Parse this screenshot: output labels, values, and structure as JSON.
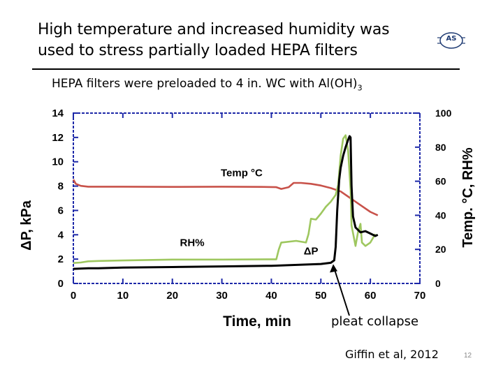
{
  "slide": {
    "title": "High temperature and increased humidity was used to stress partially loaded HEPA filters",
    "subtitle_main": "HEPA filters were preloaded to 4 in. WC with Al(OH)",
    "subtitle_sub": "3",
    "logo_text": "AS",
    "annotation": "pleat collapse",
    "citation": "Giffin et al, 2012",
    "page_number": "12"
  },
  "chart_data": {
    "type": "line",
    "xlabel": "Time, min",
    "ylabel_left": "ΔP, kPa",
    "ylabel_right": "Temp. °C, RH%",
    "xlim": [
      0,
      70
    ],
    "ylim_left": [
      0,
      14
    ],
    "ylim_right": [
      0,
      100
    ],
    "x_ticks": [
      "0",
      "10",
      "20",
      "30",
      "40",
      "50",
      "60",
      "70"
    ],
    "y_left_ticks": [
      "0",
      "2",
      "4",
      "6",
      "8",
      "10",
      "12",
      "14"
    ],
    "y_right_ticks": [
      "0",
      "20",
      "40",
      "60",
      "80",
      "100"
    ],
    "grid": false,
    "series": [
      {
        "name": "Temp °C",
        "axis": "right",
        "color": "#c8524a",
        "points": [
          [
            0,
            61
          ],
          [
            0.5,
            58.5
          ],
          [
            1.5,
            57.3
          ],
          [
            3,
            56.8
          ],
          [
            10,
            56.8
          ],
          [
            20,
            56.7
          ],
          [
            30,
            56.8
          ],
          [
            38,
            56.7
          ],
          [
            41,
            56.5
          ],
          [
            42,
            55.5
          ],
          [
            43.5,
            56.5
          ],
          [
            44.5,
            59
          ],
          [
            46,
            59
          ],
          [
            48,
            58.5
          ],
          [
            50,
            57.5
          ],
          [
            52,
            56
          ],
          [
            54,
            54
          ],
          [
            56,
            50
          ],
          [
            58,
            46
          ],
          [
            60,
            42
          ],
          [
            61.5,
            40
          ]
        ]
      },
      {
        "name": "RH%",
        "axis": "right",
        "color": "#9ec75f",
        "points": [
          [
            0,
            12
          ],
          [
            1.5,
            12.3
          ],
          [
            3,
            13
          ],
          [
            5,
            13.2
          ],
          [
            10,
            13.5
          ],
          [
            20,
            14
          ],
          [
            30,
            14
          ],
          [
            40,
            14.2
          ],
          [
            41,
            14.2
          ],
          [
            41.5,
            20
          ],
          [
            42,
            24
          ],
          [
            45,
            25
          ],
          [
            47,
            24
          ],
          [
            47.5,
            29
          ],
          [
            48,
            38
          ],
          [
            49,
            37.5
          ],
          [
            50,
            41
          ],
          [
            51,
            45
          ],
          [
            52,
            48
          ],
          [
            53,
            52
          ],
          [
            53.5,
            58
          ],
          [
            54,
            75
          ],
          [
            54.5,
            85
          ],
          [
            55,
            87
          ],
          [
            55.5,
            78
          ],
          [
            56,
            55
          ],
          [
            56.2,
            34
          ],
          [
            57,
            22
          ],
          [
            57.5,
            30
          ],
          [
            58,
            35
          ],
          [
            58.3,
            24
          ],
          [
            59,
            22
          ],
          [
            60,
            24
          ],
          [
            61,
            29
          ]
        ]
      },
      {
        "name": "ΔP",
        "axis": "left",
        "color": "#000000",
        "points": [
          [
            0,
            1.2
          ],
          [
            3,
            1.25
          ],
          [
            5,
            1.25
          ],
          [
            10,
            1.3
          ],
          [
            20,
            1.35
          ],
          [
            30,
            1.4
          ],
          [
            40,
            1.45
          ],
          [
            50,
            1.6
          ],
          [
            52,
            1.7
          ],
          [
            52.7,
            1.9
          ],
          [
            53,
            3.0
          ],
          [
            53.3,
            6.0
          ],
          [
            53.7,
            8.5
          ],
          [
            54,
            9.5
          ],
          [
            54.5,
            10.5
          ],
          [
            55,
            11.2
          ],
          [
            55.5,
            11.8
          ],
          [
            55.8,
            12.1
          ],
          [
            56,
            12.0
          ],
          [
            56.2,
            8
          ],
          [
            56.5,
            5.5
          ],
          [
            57,
            4.6
          ],
          [
            58,
            4.2
          ],
          [
            59,
            4.3
          ],
          [
            60,
            4.1
          ],
          [
            61,
            3.9
          ],
          [
            61.5,
            4.0
          ]
        ]
      }
    ],
    "annotations": [
      {
        "text": "Temp °C",
        "x": 34,
        "y_right": 63
      },
      {
        "text": "RH%",
        "x": 24,
        "y_right": 22
      },
      {
        "text": "ΔP",
        "x": 48,
        "y_right": 17
      }
    ],
    "arrow": {
      "label": "pleat collapse",
      "points_to_x": 52.5,
      "points_to_y": 1.7
    }
  }
}
